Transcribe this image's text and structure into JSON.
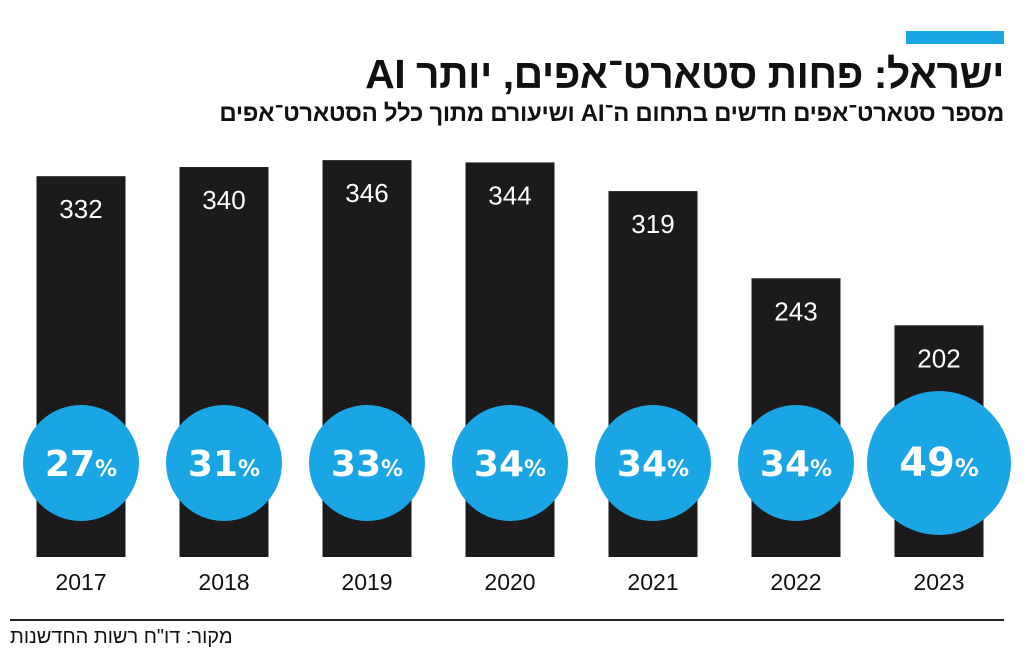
{
  "header": {
    "title": "ישראל: פחות סטארט־אפים, יותר AI",
    "subtitle": "מספר סטארט־אפים חדשים בתחום ה־AI ושיעורם מתוך כלל הסטארט־אפים"
  },
  "source": "מקור: דו\"ח רשות החדשנות",
  "colors": {
    "bar": "#1c1a1b",
    "bubble": "#1aa6e4",
    "accent": "#1aa6e4",
    "value_text": "#ffffff",
    "axis_text": "#111111"
  },
  "chart_data": {
    "type": "bar",
    "categories": [
      "2017",
      "2018",
      "2019",
      "2020",
      "2021",
      "2022",
      "2023"
    ],
    "values": [
      332,
      340,
      346,
      344,
      319,
      243,
      202
    ],
    "value_labels": [
      "332",
      "340",
      "346",
      "344",
      "319",
      "243",
      "202"
    ],
    "ai_share_percent": [
      27,
      31,
      33,
      34,
      34,
      34,
      49
    ],
    "ai_share_labels": [
      "27",
      "31",
      "33",
      "34",
      "34",
      "34",
      "49"
    ],
    "percent_sign": "%",
    "title": "ישראל: פחות סטארט־אפים, יותר AI",
    "subtitle": "מספר סטארט־אפים חדשים בתחום ה־AI ושיעורם מתוך כלל הסטארט־אפים",
    "xlabel": "",
    "ylabel": "",
    "ylim": [
      0,
      400
    ],
    "grid": false,
    "legend": "none"
  }
}
